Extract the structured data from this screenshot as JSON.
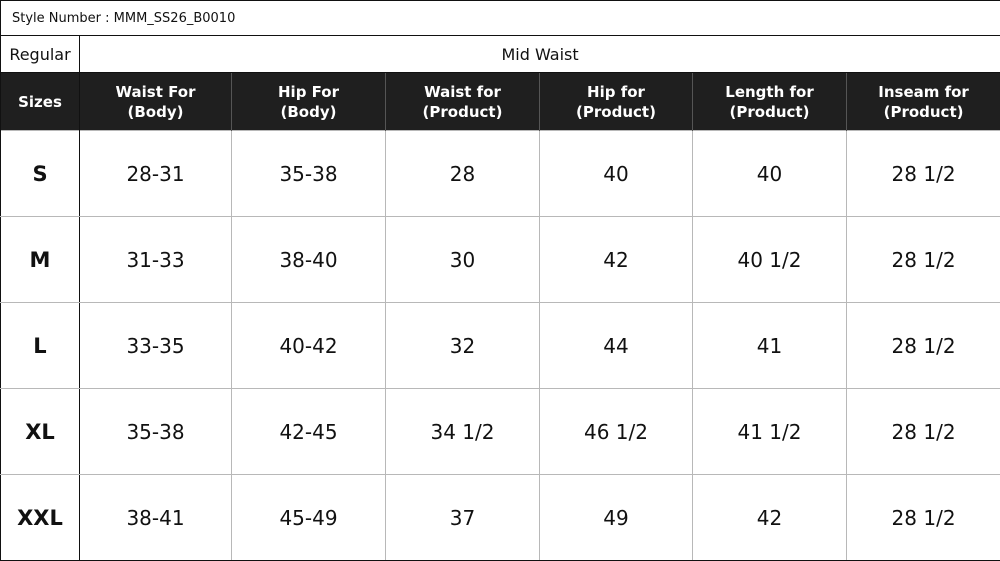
{
  "style_number": "Style Number : MMM_SS26_B0010",
  "fit": {
    "label": "Regular",
    "waist_type": "Mid Waist"
  },
  "headers": {
    "sizes": "Sizes",
    "waist_body": [
      "Waist For",
      "(Body)"
    ],
    "hip_body": [
      "Hip For",
      "(Body)"
    ],
    "waist_product": [
      "Waist for",
      "(Product)"
    ],
    "hip_product": [
      "Hip for",
      "(Product)"
    ],
    "length_product": [
      "Length for",
      "(Product)"
    ],
    "inseam_product": [
      "Inseam for",
      "(Product)"
    ]
  },
  "rows": [
    {
      "size": "S",
      "waist_body": "28-31",
      "hip_body": "35-38",
      "waist_product": "28",
      "hip_product": "40",
      "length_product": "40",
      "inseam_product": "28 1/2"
    },
    {
      "size": "M",
      "waist_body": "31-33",
      "hip_body": "38-40",
      "waist_product": "30",
      "hip_product": "42",
      "length_product": "40 1/2",
      "inseam_product": "28 1/2"
    },
    {
      "size": "L",
      "waist_body": "33-35",
      "hip_body": "40-42",
      "waist_product": "32",
      "hip_product": "44",
      "length_product": "41",
      "inseam_product": "28 1/2"
    },
    {
      "size": "XL",
      "waist_body": "35-38",
      "hip_body": "42-45",
      "waist_product": "34 1/2",
      "hip_product": "46 1/2",
      "length_product": "41 1/2",
      "inseam_product": "28 1/2"
    },
    {
      "size": "XXL",
      "waist_body": "38-41",
      "hip_body": "45-49",
      "waist_product": "37",
      "hip_product": "49",
      "length_product": "42",
      "inseam_product": "28 1/2"
    }
  ]
}
